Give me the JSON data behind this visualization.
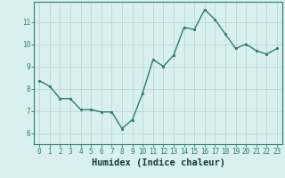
{
  "x": [
    0,
    1,
    2,
    3,
    4,
    5,
    6,
    7,
    8,
    9,
    10,
    11,
    12,
    13,
    14,
    15,
    16,
    17,
    18,
    19,
    20,
    21,
    22,
    23
  ],
  "y": [
    8.35,
    8.1,
    7.55,
    7.55,
    7.05,
    7.05,
    6.95,
    6.95,
    6.2,
    6.6,
    7.8,
    9.3,
    9.0,
    9.5,
    10.75,
    10.65,
    11.55,
    11.1,
    10.45,
    9.8,
    10.0,
    9.7,
    9.55,
    9.8
  ],
  "line_color": "#2e7d6e",
  "marker": "o",
  "marker_size": 1.8,
  "line_width": 1.0,
  "bg_color": "#d8f0f0",
  "grid_color": "#b8d0d0",
  "xlabel": "Humidex (Indice chaleur)",
  "xlim": [
    -0.5,
    23.5
  ],
  "ylim": [
    5.5,
    11.9
  ],
  "yticks": [
    6,
    7,
    8,
    9,
    10,
    11
  ],
  "xticks": [
    0,
    1,
    2,
    3,
    4,
    5,
    6,
    7,
    8,
    9,
    10,
    11,
    12,
    13,
    14,
    15,
    16,
    17,
    18,
    19,
    20,
    21,
    22,
    23
  ],
  "tick_fontsize": 5.5,
  "xlabel_fontsize": 7.5,
  "tick_color": "#2e7d6e",
  "xlabel_color": "#1a3a3a",
  "spine_color": "#2e7d6e"
}
